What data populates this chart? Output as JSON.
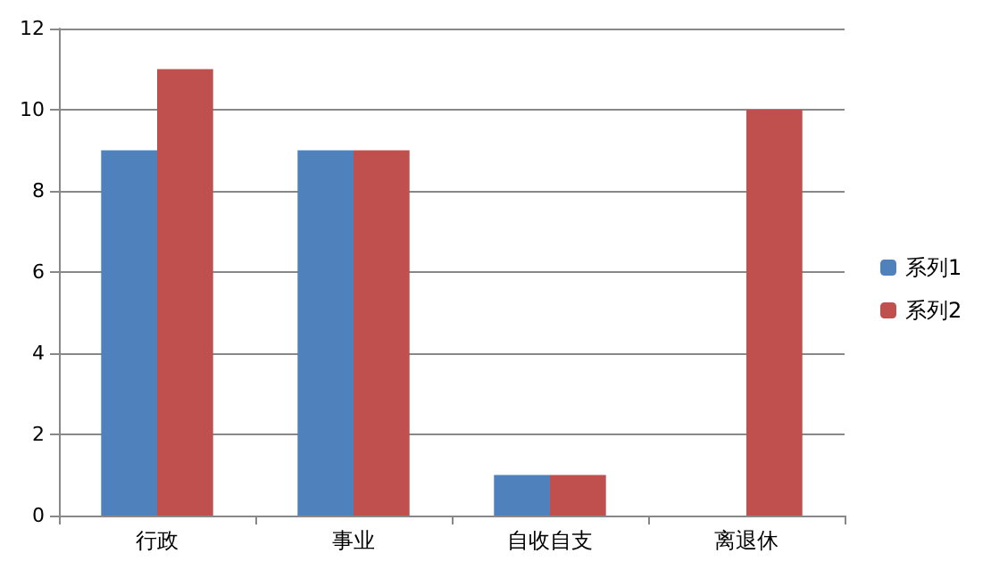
{
  "chart_data": {
    "type": "bar",
    "categories": [
      "行政",
      "事业",
      "自收自支",
      "离退休"
    ],
    "series": [
      {
        "name": "系列1",
        "color": "#4f81bd",
        "values": [
          9,
          9,
          1,
          0
        ]
      },
      {
        "name": "系列2",
        "color": "#c0504d",
        "values": [
          11,
          9,
          1,
          10
        ]
      }
    ],
    "ylim": [
      0,
      12
    ],
    "yticks": [
      0,
      2,
      4,
      6,
      8,
      10,
      12
    ],
    "grid": "y",
    "legend": "right"
  }
}
